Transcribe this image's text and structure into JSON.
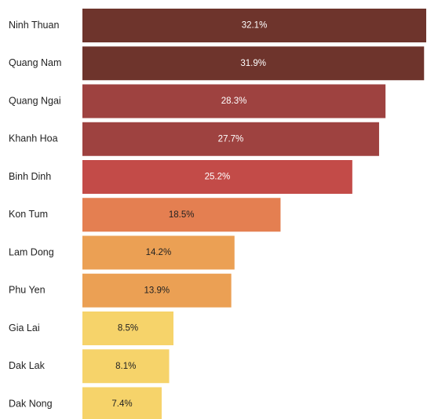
{
  "chart_data": {
    "type": "bar",
    "orientation": "horizontal",
    "title": "",
    "xlabel": "",
    "ylabel": "",
    "xlim": [
      0,
      32.1
    ],
    "grid": false,
    "legend": "none",
    "categories": [
      "Ninh Thuan",
      "Quang Nam",
      "Quang Ngai",
      "Khanh Hoa",
      "Binh Dinh",
      "Kon Tum",
      "Lam Dong",
      "Phu Yen",
      "Gia Lai",
      "Dak Lak",
      "Dak Nong"
    ],
    "values": [
      32.1,
      31.9,
      28.3,
      27.7,
      25.2,
      18.5,
      14.2,
      13.9,
      8.5,
      8.1,
      7.4
    ],
    "data_labels": [
      "32.1%",
      "31.9%",
      "28.3%",
      "27.7%",
      "25.2%",
      "18.5%",
      "14.2%",
      "13.9%",
      "8.5%",
      "8.1%",
      "7.4%"
    ],
    "colors": [
      "#6e342c",
      "#6e342c",
      "#9e4240",
      "#9e4240",
      "#c34b48",
      "#e47f51",
      "#eba054",
      "#eba054",
      "#f6d36a",
      "#f6d36a",
      "#f6d36a"
    ],
    "label_colors": [
      "#ffffff",
      "#ffffff",
      "#ffffff",
      "#ffffff",
      "#ffffff",
      "#222222",
      "#222222",
      "#222222",
      "#222222",
      "#222222",
      "#222222"
    ]
  }
}
